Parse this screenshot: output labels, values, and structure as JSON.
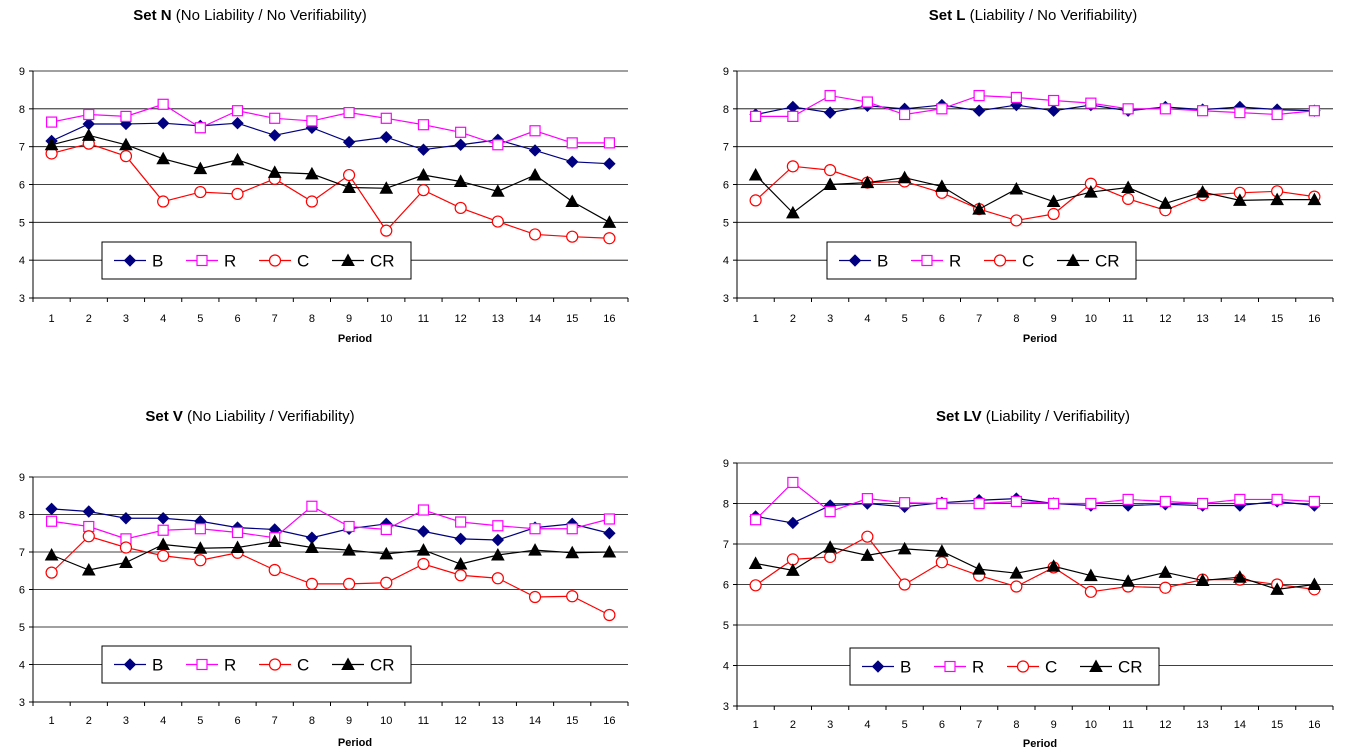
{
  "colors": {
    "B": "#000080",
    "R": "#ff00ff",
    "C": "#ff0000",
    "CR": "#000000",
    "grid": "#000000"
  },
  "chart_data": [
    {
      "type": "line",
      "title_bold": "Set N",
      "title_rest": " (No Liability / No Verifiability)",
      "xlabel": "Period",
      "ylabel": "",
      "ylim": [
        3,
        9
      ],
      "yticks": [
        "3",
        "4",
        "5",
        "6",
        "7",
        "8",
        "9"
      ],
      "x": [
        "1",
        "2",
        "3",
        "4",
        "5",
        "6",
        "7",
        "8",
        "9",
        "10",
        "11",
        "12",
        "13",
        "14",
        "15",
        "16"
      ],
      "legend_position": "bottom-left",
      "series": [
        {
          "name": "B",
          "marker": "diamond",
          "values": [
            7.15,
            7.6,
            7.6,
            7.62,
            7.55,
            7.62,
            7.3,
            7.5,
            7.12,
            7.25,
            6.92,
            7.05,
            7.18,
            6.9,
            6.6,
            6.55
          ]
        },
        {
          "name": "R",
          "marker": "square",
          "values": [
            7.65,
            7.85,
            7.8,
            8.12,
            7.5,
            7.95,
            7.75,
            7.68,
            7.9,
            7.75,
            7.58,
            7.38,
            7.05,
            7.42,
            7.1,
            7.1
          ]
        },
        {
          "name": "C",
          "marker": "circle",
          "values": [
            6.82,
            7.08,
            6.75,
            5.55,
            5.8,
            5.75,
            6.15,
            5.55,
            6.25,
            4.78,
            5.85,
            5.38,
            5.02,
            4.68,
            4.62,
            4.58
          ]
        },
        {
          "name": "CR",
          "marker": "triangle",
          "values": [
            7.05,
            7.3,
            7.05,
            6.68,
            6.42,
            6.65,
            6.32,
            6.28,
            5.92,
            5.9,
            6.25,
            6.08,
            5.82,
            6.25,
            5.55,
            5.0
          ]
        }
      ]
    },
    {
      "type": "line",
      "title_bold": "Set L",
      "title_rest": " (Liability / No Verifiability)",
      "xlabel": "Period",
      "ylabel": "",
      "ylim": [
        3,
        9
      ],
      "yticks": [
        "3",
        "4",
        "5",
        "6",
        "7",
        "8",
        "9"
      ],
      "x": [
        "1",
        "2",
        "3",
        "4",
        "5",
        "6",
        "7",
        "8",
        "9",
        "10",
        "11",
        "12",
        "13",
        "14",
        "15",
        "16"
      ],
      "legend_position": "bottom-left",
      "series": [
        {
          "name": "B",
          "marker": "diamond",
          "values": [
            7.85,
            8.05,
            7.9,
            8.08,
            8.0,
            8.1,
            7.95,
            8.1,
            7.95,
            8.1,
            7.95,
            8.05,
            7.98,
            8.05,
            7.98,
            7.95
          ]
        },
        {
          "name": "R",
          "marker": "square",
          "values": [
            7.8,
            7.8,
            8.35,
            8.18,
            7.85,
            8.0,
            8.35,
            8.3,
            8.22,
            8.15,
            8.0,
            8.0,
            7.95,
            7.9,
            7.85,
            7.95
          ]
        },
        {
          "name": "C",
          "marker": "circle",
          "values": [
            5.58,
            6.48,
            6.38,
            6.05,
            6.08,
            5.78,
            5.35,
            5.05,
            5.22,
            6.02,
            5.62,
            5.32,
            5.72,
            5.78,
            5.82,
            5.68
          ]
        },
        {
          "name": "CR",
          "marker": "triangle",
          "values": [
            6.25,
            5.25,
            6.0,
            6.05,
            6.18,
            5.95,
            5.35,
            5.88,
            5.55,
            5.8,
            5.92,
            5.5,
            5.8,
            5.58,
            5.6,
            5.6
          ]
        }
      ]
    },
    {
      "type": "line",
      "title_bold": "Set V",
      "title_rest": " (No Liability / Verifiability)",
      "xlabel": "Period",
      "ylabel": "",
      "ylim": [
        3,
        9
      ],
      "yticks": [
        "3",
        "4",
        "5",
        "6",
        "7",
        "8",
        "9"
      ],
      "x": [
        "1",
        "2",
        "3",
        "4",
        "5",
        "6",
        "7",
        "8",
        "9",
        "10",
        "11",
        "12",
        "13",
        "14",
        "15",
        "16"
      ],
      "legend_position": "bottom-left",
      "series": [
        {
          "name": "B",
          "marker": "diamond",
          "values": [
            8.15,
            8.08,
            7.9,
            7.9,
            7.82,
            7.65,
            7.6,
            7.38,
            7.62,
            7.75,
            7.55,
            7.35,
            7.32,
            7.65,
            7.75,
            7.5
          ]
        },
        {
          "name": "R",
          "marker": "square",
          "values": [
            7.82,
            7.68,
            7.35,
            7.58,
            7.62,
            7.52,
            7.38,
            8.22,
            7.68,
            7.6,
            8.12,
            7.8,
            7.7,
            7.62,
            7.62,
            7.88
          ]
        },
        {
          "name": "C",
          "marker": "circle",
          "values": [
            6.45,
            7.42,
            7.12,
            6.9,
            6.78,
            6.98,
            6.52,
            6.15,
            6.15,
            6.18,
            6.68,
            6.38,
            6.3,
            5.8,
            5.82,
            5.32
          ]
        },
        {
          "name": "CR",
          "marker": "triangle",
          "values": [
            6.92,
            6.52,
            6.72,
            7.2,
            7.1,
            7.12,
            7.28,
            7.12,
            7.05,
            6.95,
            7.05,
            6.68,
            6.92,
            7.05,
            6.98,
            7.0
          ]
        }
      ]
    },
    {
      "type": "line",
      "title_bold": "Set LV",
      "title_rest": " (Liability / Verifiability)",
      "xlabel": "Period",
      "ylabel": "",
      "ylim": [
        3,
        9
      ],
      "yticks": [
        "3",
        "4",
        "5",
        "6",
        "7",
        "8",
        "9"
      ],
      "x": [
        "1",
        "2",
        "3",
        "4",
        "5",
        "6",
        "7",
        "8",
        "9",
        "10",
        "11",
        "12",
        "13",
        "14",
        "15",
        "16"
      ],
      "legend_position": "bottom-center",
      "series": [
        {
          "name": "B",
          "marker": "diamond",
          "values": [
            7.68,
            7.52,
            7.95,
            8.0,
            7.92,
            8.02,
            8.08,
            8.12,
            8.0,
            7.95,
            7.95,
            7.98,
            7.95,
            7.95,
            8.05,
            7.95
          ]
        },
        {
          "name": "R",
          "marker": "square",
          "values": [
            7.6,
            8.52,
            7.8,
            8.12,
            8.02,
            8.0,
            8.0,
            8.05,
            8.0,
            8.0,
            8.1,
            8.05,
            8.0,
            8.1,
            8.1,
            8.05
          ]
        },
        {
          "name": "C",
          "marker": "circle",
          "values": [
            5.98,
            6.62,
            6.68,
            7.18,
            6.0,
            6.55,
            6.22,
            5.95,
            6.42,
            5.82,
            5.95,
            5.92,
            6.12,
            6.12,
            6.0,
            5.88
          ]
        },
        {
          "name": "CR",
          "marker": "triangle",
          "values": [
            6.52,
            6.35,
            6.92,
            6.72,
            6.88,
            6.82,
            6.38,
            6.28,
            6.45,
            6.22,
            6.08,
            6.3,
            6.1,
            6.18,
            5.88,
            6.0
          ]
        }
      ]
    }
  ]
}
